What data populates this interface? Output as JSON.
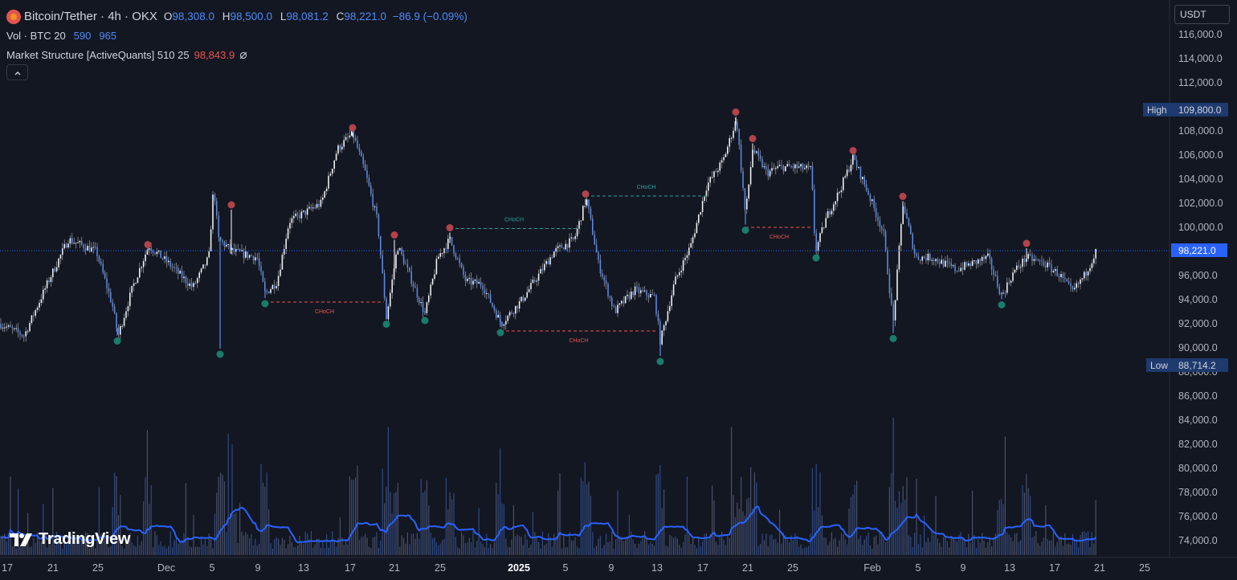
{
  "header": {
    "symbol": "Bitcoin/Tether · 4h · OKX",
    "ohlc": {
      "o_label": "O",
      "o": "98,308.0",
      "h_label": "H",
      "h": "98,500.0",
      "l_label": "L",
      "l": "98,081.2",
      "c_label": "C",
      "c": "98,221.0",
      "change": "−86.9 (−0.09%)"
    },
    "volume": {
      "label": "Vol · BTC 20",
      "v1": "590",
      "v2": "965"
    },
    "indicator": {
      "label": "Market Structure [ActiveQuants] 510 25",
      "value": "98,843.9",
      "icon": "eye-off-icon"
    },
    "collapse_icon": "chevron-up-icon"
  },
  "currency": "USDT",
  "price_axis": {
    "labels": [
      "116,000.0",
      "114,000.0",
      "112,000.0",
      "110,000.0",
      "108,000.0",
      "106,000.0",
      "104,000.0",
      "102,000.0",
      "100,000.0",
      "98,000.0",
      "96,000.0",
      "94,000.0",
      "92,000.0",
      "90,000.0",
      "88,000.0",
      "86,000.0",
      "84,000.0",
      "82,000.0",
      "80,000.0",
      "78,000.0",
      "76,000.0",
      "74,000.0"
    ],
    "high_label": "High",
    "high_value": "109,800.0",
    "low_label": "Low",
    "low_value": "88,714.2",
    "last_price": "98,221.0"
  },
  "time_axis": {
    "labels": [
      "17",
      "21",
      "25",
      "Dec",
      "5",
      "9",
      "13",
      "17",
      "21",
      "25",
      "2025",
      "5",
      "9",
      "13",
      "17",
      "21",
      "25",
      "Feb",
      "5",
      "9",
      "13",
      "17",
      "21",
      "25"
    ]
  },
  "choch_labels": [
    "CHoCH",
    "CHoCH",
    "CHoCH",
    "CHoCH",
    "CHoCH"
  ],
  "branding": {
    "logo_text": "TradingView"
  },
  "chart_data": {
    "type": "candlestick",
    "symbol": "BTCUSDT",
    "timeframe": "4h",
    "ylim": [
      73000,
      117000
    ],
    "price_path": [
      [
        0,
        92000
      ],
      [
        30,
        91000
      ],
      [
        60,
        95500
      ],
      [
        85,
        99000
      ],
      [
        120,
        98000
      ],
      [
        140,
        93500
      ],
      [
        147,
        91000
      ],
      [
        165,
        95000
      ],
      [
        185,
        98500
      ],
      [
        210,
        97000
      ],
      [
        240,
        95000
      ],
      [
        260,
        97500
      ],
      [
        266,
        103500
      ],
      [
        272,
        99000
      ],
      [
        290,
        98000
      ],
      [
        320,
        97500
      ],
      [
        330,
        94500
      ],
      [
        345,
        95500
      ],
      [
        360,
        100500
      ],
      [
        400,
        102000
      ],
      [
        420,
        106500
      ],
      [
        439,
        107800
      ],
      [
        455,
        104500
      ],
      [
        470,
        100500
      ],
      [
        481,
        92500
      ],
      [
        495,
        98500
      ],
      [
        510,
        96000
      ],
      [
        529,
        92800
      ],
      [
        545,
        97500
      ],
      [
        560,
        99000
      ],
      [
        580,
        95500
      ],
      [
        600,
        95300
      ],
      [
        624,
        92000
      ],
      [
        650,
        94000
      ],
      [
        690,
        98000
      ],
      [
        715,
        99000
      ],
      [
        730,
        102400
      ],
      [
        745,
        97000
      ],
      [
        765,
        93000
      ],
      [
        790,
        94800
      ],
      [
        815,
        94200
      ],
      [
        822,
        90500
      ],
      [
        840,
        95500
      ],
      [
        860,
        98500
      ],
      [
        880,
        103500
      ],
      [
        900,
        105500
      ],
      [
        917,
        109000
      ],
      [
        928,
        101000
      ],
      [
        937,
        106500
      ],
      [
        955,
        104500
      ],
      [
        970,
        105000
      ],
      [
        990,
        105000
      ],
      [
        1010,
        104800
      ],
      [
        1015,
        98000
      ],
      [
        1030,
        101000
      ],
      [
        1045,
        103000
      ],
      [
        1062,
        105800
      ],
      [
        1080,
        103000
      ],
      [
        1100,
        99500
      ],
      [
        1112,
        92000
      ],
      [
        1124,
        102000
      ],
      [
        1140,
        97500
      ],
      [
        1160,
        97500
      ],
      [
        1190,
        96500
      ],
      [
        1210,
        97000
      ],
      [
        1230,
        97500
      ],
      [
        1247,
        94300
      ],
      [
        1262,
        96300
      ],
      [
        1278,
        97500
      ],
      [
        1300,
        97000
      ],
      [
        1320,
        96000
      ],
      [
        1335,
        94600
      ],
      [
        1350,
        96000
      ],
      [
        1366,
        98200
      ]
    ],
    "swing_highs": [
      [
        184,
        98500
      ],
      [
        288,
        101800
      ],
      [
        439,
        108200
      ],
      [
        491,
        99300
      ],
      [
        560,
        99900
      ],
      [
        729,
        102700
      ],
      [
        916,
        109500
      ],
      [
        937,
        107300
      ],
      [
        1062,
        106300
      ],
      [
        1124,
        102500
      ],
      [
        1278,
        98600
      ]
    ],
    "swing_lows": [
      [
        146,
        90700
      ],
      [
        274,
        89600
      ],
      [
        330,
        93800
      ],
      [
        481,
        92100
      ],
      [
        529,
        92400
      ],
      [
        623,
        91400
      ],
      [
        822,
        89000
      ],
      [
        928,
        99900
      ],
      [
        1016,
        97600
      ],
      [
        1112,
        90900
      ],
      [
        1247,
        93700
      ]
    ],
    "choch_levels": [
      {
        "type": "bearish",
        "price": 93800,
        "from": 330,
        "to": 478
      },
      {
        "type": "bullish",
        "price": 99900,
        "from": 560,
        "to": 720
      },
      {
        "type": "bullish",
        "price": 102600,
        "from": 729,
        "to": 880
      },
      {
        "type": "bearish",
        "price": 91400,
        "from": 623,
        "to": 818
      },
      {
        "type": "bearish",
        "price": 100000,
        "from": 928,
        "to": 1012
      }
    ],
    "high": 109800.0,
    "low": 88714.2,
    "last": 98221.0,
    "colors": {
      "candle": "#5b8def",
      "wick": "#d1d4dc",
      "swing_high": "#b2434b",
      "swing_low": "#1a7c6b",
      "bull_line": "#26a69a",
      "bear_line": "#ef5350",
      "volume": "#3a4258",
      "volume_ma": "#2962ff"
    }
  }
}
